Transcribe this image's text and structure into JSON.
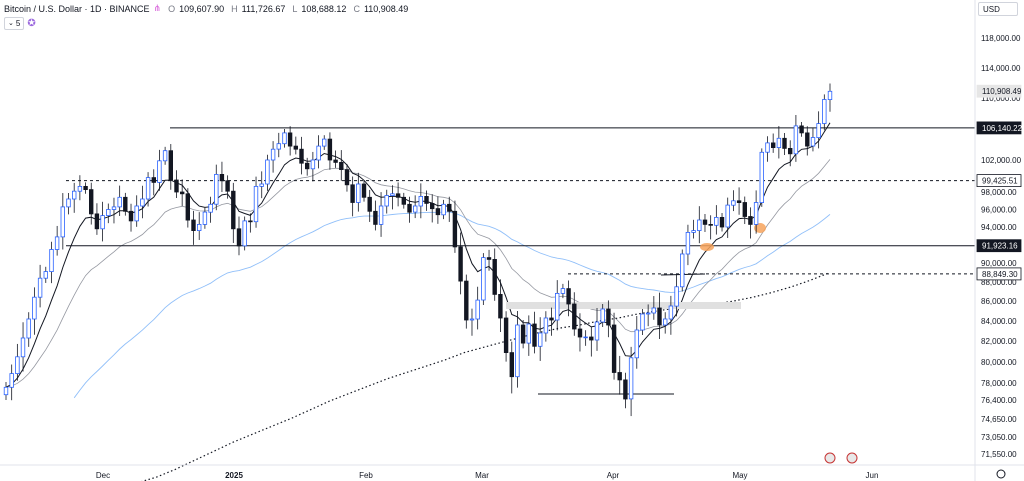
{
  "header": {
    "symbol": "Bitcoin / U.S. Dollar · 1D · BINANCE",
    "open_label": "O",
    "open": "109,607.90",
    "high_label": "H",
    "high": "111,726.67",
    "low_label": "L",
    "low": "108,688.12",
    "close_label": "C",
    "close": "110,908.49",
    "indicator_count": "5"
  },
  "currency": "USD",
  "colors": {
    "up": "#2962ff",
    "down": "#131722",
    "ema_slow": "#90bff9",
    "ema_fast": "#131722",
    "ema_mid": "#9598a1",
    "highlight": "#f7a35c"
  },
  "chart_data": {
    "type": "candlestick",
    "title": "Bitcoin / U.S. Dollar · 1D · BINANCE",
    "y_ticks": [
      "118,000.00",
      "114,000.00",
      "110,000.00",
      "102,000.00",
      "98,000.00",
      "96,000.00",
      "94,000.00",
      "90,000.00",
      "88,000.00",
      "86,000.00",
      "84,000.00",
      "82,000.00",
      "80,000.00",
      "78,000.00",
      "76,400.00",
      "74,650.00",
      "73,050.00",
      "71,550.00"
    ],
    "x_ticks": [
      "Dec",
      "2025",
      "Feb",
      "Mar",
      "Apr",
      "May",
      "Jun"
    ],
    "price_tags": [
      {
        "label": "110,908.49",
        "value": 110908.49,
        "style": "gray"
      },
      {
        "label": "106,140.22",
        "value": 106140.22,
        "style": "dark"
      },
      {
        "label": "99,425.51",
        "value": 99425.51,
        "style": "outline"
      },
      {
        "label": "91,923.16",
        "value": 91923.16,
        "style": "dark"
      },
      {
        "label": "88,849.30",
        "value": 88849.3,
        "style": "outline"
      }
    ],
    "horizontal_levels": [
      {
        "value": 106140.22,
        "style": "solid"
      },
      {
        "value": 99425.51,
        "style": "dashed"
      },
      {
        "value": 91923.16,
        "style": "solid"
      },
      {
        "value": 88849.3,
        "style": "dashed"
      }
    ],
    "approx_closes": [
      77600,
      78900,
      80500,
      82300,
      84200,
      86400,
      88400,
      89100,
      91500,
      92900,
      96300,
      97200,
      98100,
      98700,
      98300,
      95500,
      93800,
      95300,
      96000,
      96300,
      97400,
      95800,
      94700,
      96400,
      97200,
      99800,
      99200,
      101900,
      103200,
      99500,
      98000,
      97800,
      94800,
      93600,
      94300,
      95700,
      96600,
      100200,
      99400,
      98100,
      93800,
      91900,
      94700,
      94600,
      98700,
      99000,
      102000,
      103400,
      104100,
      105500,
      103800,
      103400,
      101600,
      100900,
      102000,
      103800,
      104700,
      102000,
      101700,
      100800,
      98900,
      96800,
      99000,
      97400,
      95800,
      94300,
      96400,
      97600,
      97800,
      97400,
      96600,
      95700,
      96400,
      97500,
      96700,
      96100,
      95400,
      96600,
      95800,
      91800,
      88100,
      84100,
      84200,
      86100,
      90600,
      90400,
      86700,
      84300,
      80900,
      78600,
      83600,
      81800,
      83700,
      81500,
      82800,
      84300,
      84100,
      86800,
      87300,
      85700,
      83200,
      82400,
      82400,
      82100,
      83900,
      85200,
      83600,
      79000,
      78300,
      76500,
      80400,
      83100,
      84700,
      84800,
      85300,
      83600,
      84200,
      85500,
      87500,
      91000,
      93400,
      93600,
      94800,
      94300,
      94200,
      95100,
      94000,
      96500,
      97000,
      96800,
      95200,
      94300,
      96800,
      103000,
      104200,
      103600,
      104800,
      103500,
      102800,
      106400,
      105500,
      103800,
      104900,
      106700,
      109800,
      110900
    ],
    "ylim": [
      70500,
      121000
    ]
  }
}
